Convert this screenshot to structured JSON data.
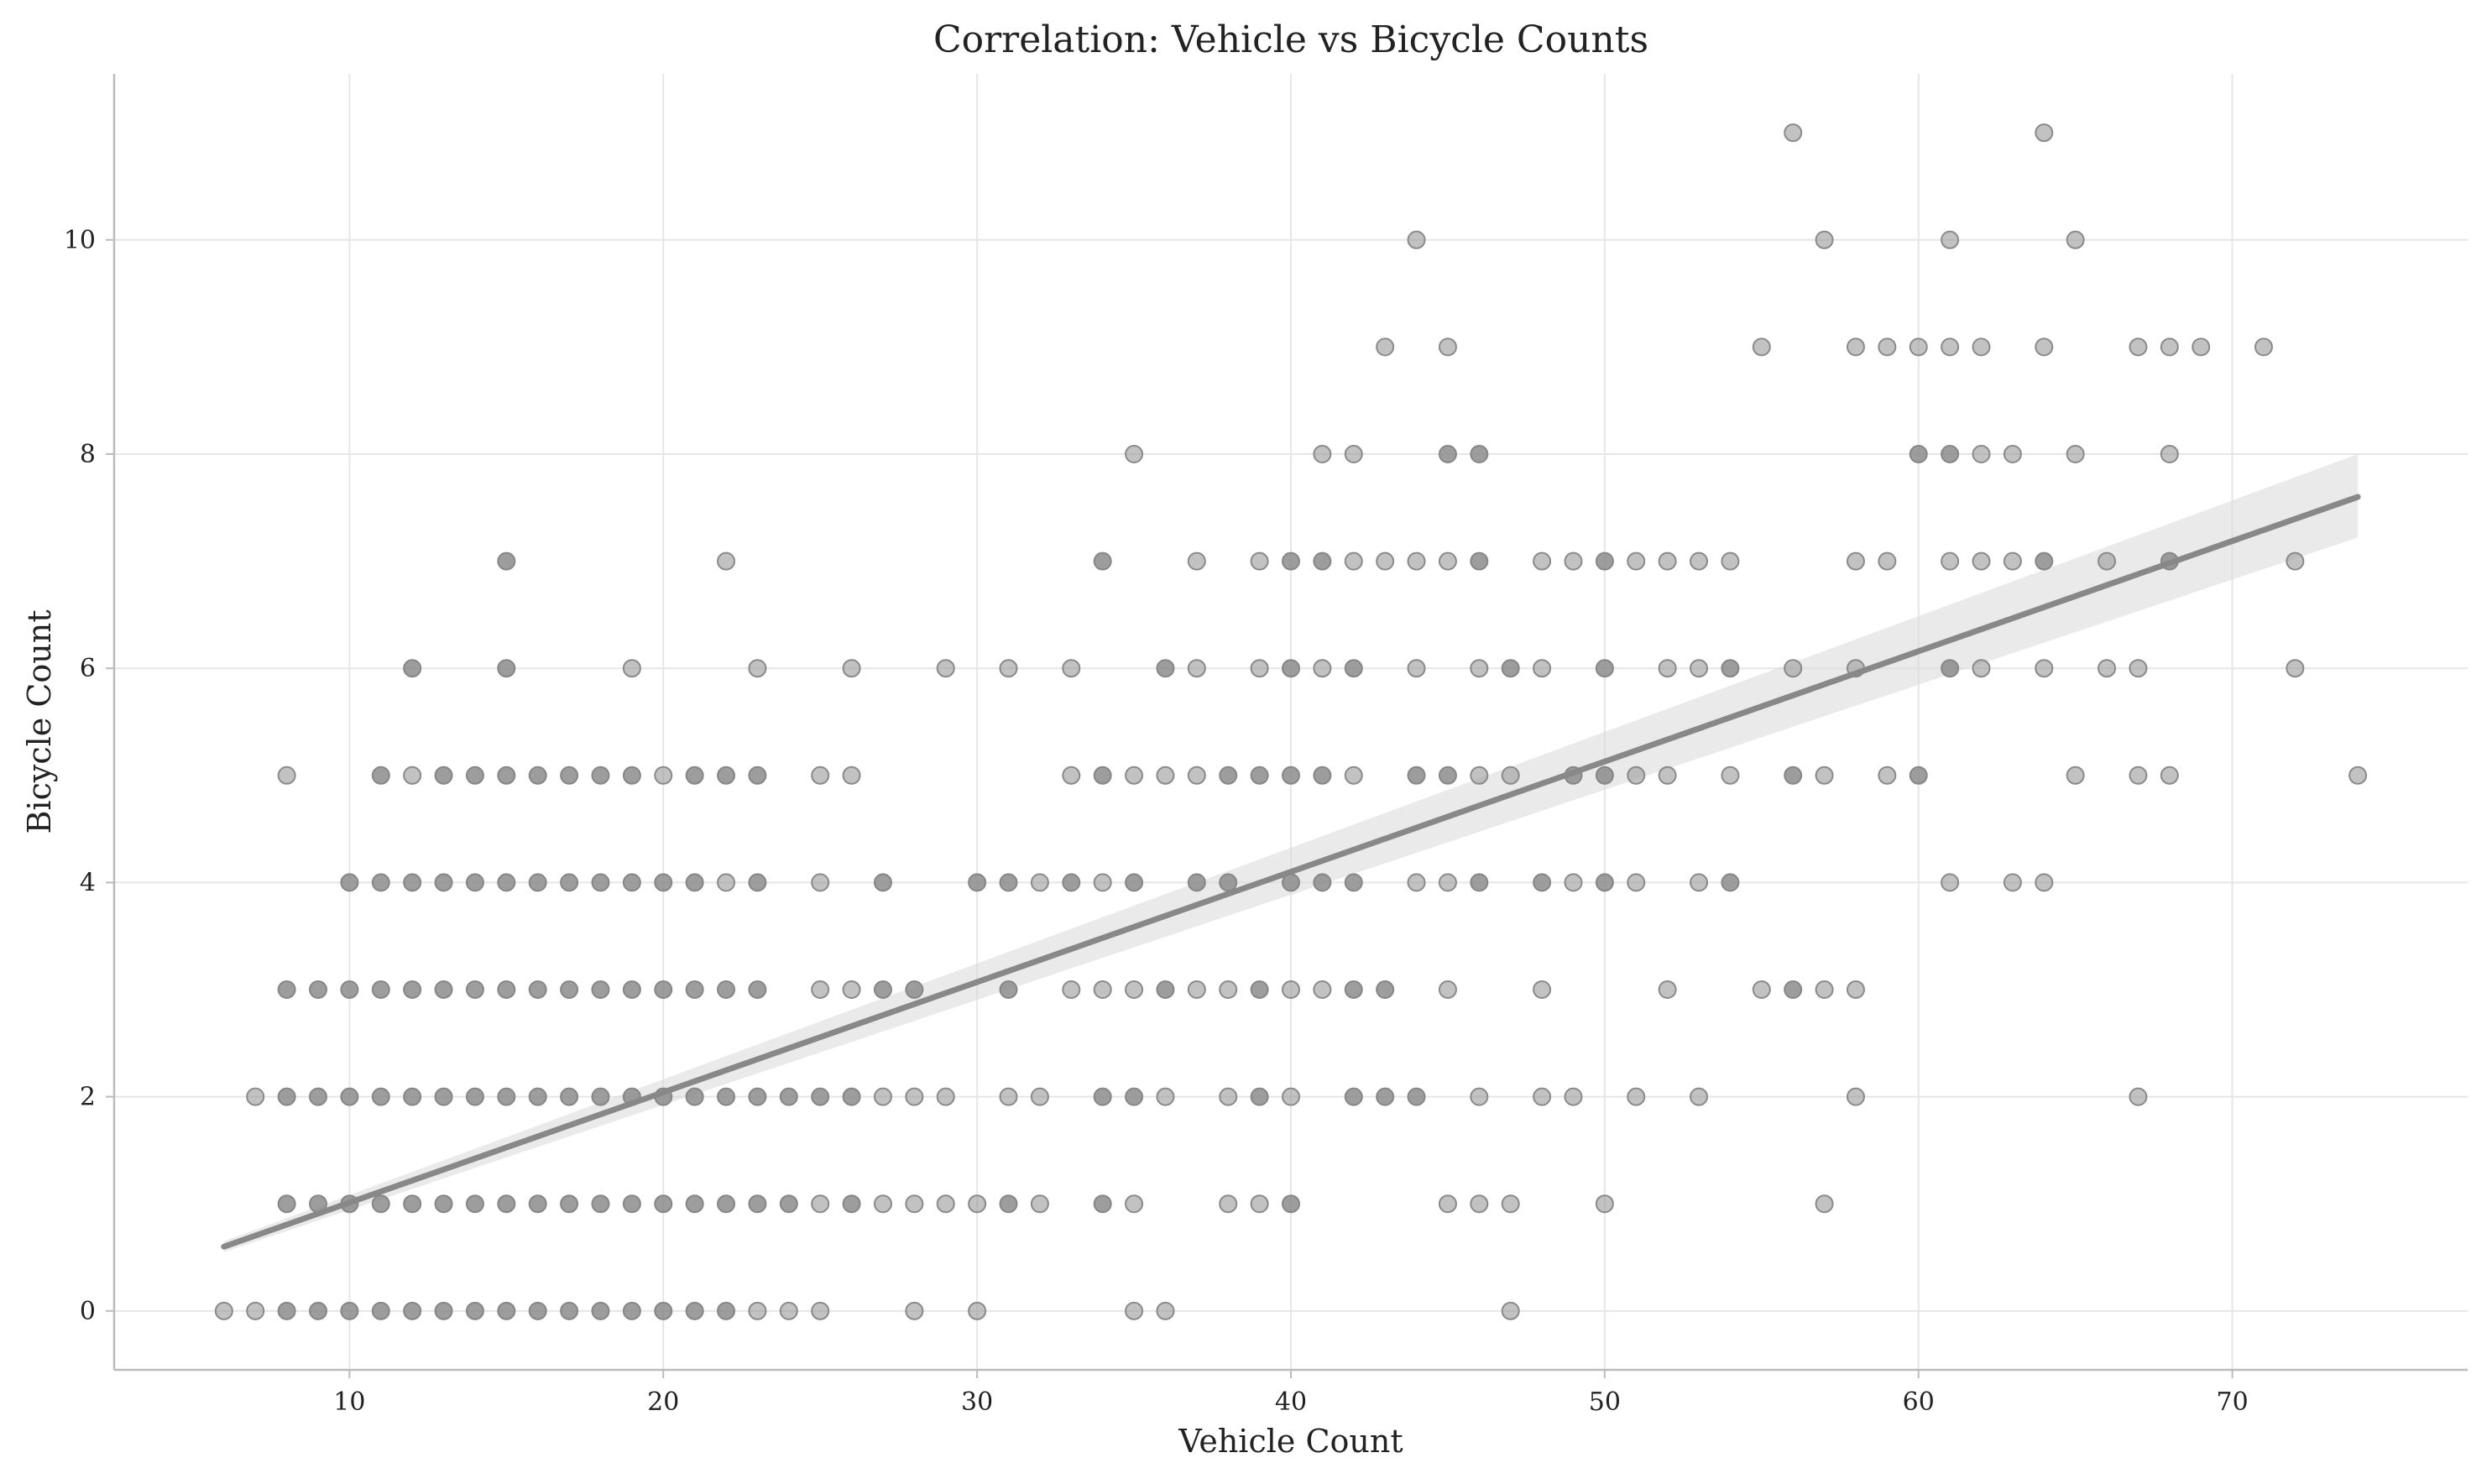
{
  "chart_data": {
    "type": "scatter",
    "title": "Correlation: Vehicle vs Bicycle Counts",
    "xlabel": "Vehicle Count",
    "ylabel": "Bicycle Count",
    "xlim": [
      2.5,
      77.5
    ],
    "ylim": [
      -0.55,
      11.55
    ],
    "xticks": [
      10,
      20,
      30,
      40,
      50,
      60,
      70
    ],
    "yticks": [
      0,
      2,
      4,
      6,
      8,
      10
    ],
    "grid": true,
    "colors": {
      "points": "#999999",
      "point_edge": "#8a8a8a",
      "regression": "#888888",
      "band": "#d9d9d9"
    },
    "regression": {
      "x": [
        6,
        74
      ],
      "y": [
        0.6,
        7.6
      ],
      "ci_upper": [
        0.65,
        8.0
      ],
      "ci_lower": [
        0.55,
        7.22
      ]
    },
    "points": [
      [
        6,
        0
      ],
      [
        7,
        0
      ],
      [
        8,
        0
      ],
      [
        9,
        0
      ],
      [
        10,
        0
      ],
      [
        11,
        0
      ],
      [
        12,
        0
      ],
      [
        13,
        0
      ],
      [
        14,
        0
      ],
      [
        15,
        0
      ],
      [
        16,
        0
      ],
      [
        17,
        0
      ],
      [
        18,
        0
      ],
      [
        19,
        0
      ],
      [
        20,
        0
      ],
      [
        21,
        0
      ],
      [
        22,
        0
      ],
      [
        23,
        0
      ],
      [
        24,
        0
      ],
      [
        25,
        0
      ],
      [
        28,
        0
      ],
      [
        30,
        0
      ],
      [
        35,
        0
      ],
      [
        36,
        0
      ],
      [
        47,
        0
      ],
      [
        8,
        1
      ],
      [
        9,
        1
      ],
      [
        10,
        1
      ],
      [
        11,
        1
      ],
      [
        12,
        1
      ],
      [
        13,
        1
      ],
      [
        14,
        1
      ],
      [
        15,
        1
      ],
      [
        16,
        1
      ],
      [
        17,
        1
      ],
      [
        18,
        1
      ],
      [
        19,
        1
      ],
      [
        20,
        1
      ],
      [
        21,
        1
      ],
      [
        22,
        1
      ],
      [
        23,
        1
      ],
      [
        24,
        1
      ],
      [
        25,
        1
      ],
      [
        26,
        1
      ],
      [
        27,
        1
      ],
      [
        28,
        1
      ],
      [
        29,
        1
      ],
      [
        30,
        1
      ],
      [
        31,
        1
      ],
      [
        32,
        1
      ],
      [
        34,
        1
      ],
      [
        35,
        1
      ],
      [
        38,
        1
      ],
      [
        39,
        1
      ],
      [
        40,
        1
      ],
      [
        45,
        1
      ],
      [
        46,
        1
      ],
      [
        47,
        1
      ],
      [
        50,
        1
      ],
      [
        57,
        1
      ],
      [
        7,
        2
      ],
      [
        8,
        2
      ],
      [
        9,
        2
      ],
      [
        10,
        2
      ],
      [
        11,
        2
      ],
      [
        12,
        2
      ],
      [
        13,
        2
      ],
      [
        14,
        2
      ],
      [
        15,
        2
      ],
      [
        16,
        2
      ],
      [
        17,
        2
      ],
      [
        18,
        2
      ],
      [
        19,
        2
      ],
      [
        20,
        2
      ],
      [
        21,
        2
      ],
      [
        22,
        2
      ],
      [
        23,
        2
      ],
      [
        24,
        2
      ],
      [
        25,
        2
      ],
      [
        26,
        2
      ],
      [
        27,
        2
      ],
      [
        28,
        2
      ],
      [
        29,
        2
      ],
      [
        31,
        2
      ],
      [
        32,
        2
      ],
      [
        34,
        2
      ],
      [
        35,
        2
      ],
      [
        36,
        2
      ],
      [
        38,
        2
      ],
      [
        39,
        2
      ],
      [
        40,
        2
      ],
      [
        42,
        2
      ],
      [
        43,
        2
      ],
      [
        44,
        2
      ],
      [
        46,
        2
      ],
      [
        48,
        2
      ],
      [
        49,
        2
      ],
      [
        51,
        2
      ],
      [
        53,
        2
      ],
      [
        58,
        2
      ],
      [
        67,
        2
      ],
      [
        8,
        3
      ],
      [
        9,
        3
      ],
      [
        10,
        3
      ],
      [
        11,
        3
      ],
      [
        12,
        3
      ],
      [
        13,
        3
      ],
      [
        14,
        3
      ],
      [
        15,
        3
      ],
      [
        16,
        3
      ],
      [
        17,
        3
      ],
      [
        18,
        3
      ],
      [
        19,
        3
      ],
      [
        20,
        3
      ],
      [
        21,
        3
      ],
      [
        22,
        3
      ],
      [
        23,
        3
      ],
      [
        25,
        3
      ],
      [
        26,
        3
      ],
      [
        27,
        3
      ],
      [
        28,
        3
      ],
      [
        31,
        3
      ],
      [
        33,
        3
      ],
      [
        34,
        3
      ],
      [
        35,
        3
      ],
      [
        36,
        3
      ],
      [
        37,
        3
      ],
      [
        38,
        3
      ],
      [
        39,
        3
      ],
      [
        40,
        3
      ],
      [
        41,
        3
      ],
      [
        42,
        3
      ],
      [
        43,
        3
      ],
      [
        45,
        3
      ],
      [
        48,
        3
      ],
      [
        52,
        3
      ],
      [
        55,
        3
      ],
      [
        56,
        3
      ],
      [
        57,
        3
      ],
      [
        58,
        3
      ],
      [
        10,
        4
      ],
      [
        11,
        4
      ],
      [
        12,
        4
      ],
      [
        13,
        4
      ],
      [
        14,
        4
      ],
      [
        15,
        4
      ],
      [
        16,
        4
      ],
      [
        17,
        4
      ],
      [
        18,
        4
      ],
      [
        19,
        4
      ],
      [
        20,
        4
      ],
      [
        21,
        4
      ],
      [
        22,
        4
      ],
      [
        23,
        4
      ],
      [
        25,
        4
      ],
      [
        27,
        4
      ],
      [
        30,
        4
      ],
      [
        31,
        4
      ],
      [
        32,
        4
      ],
      [
        33,
        4
      ],
      [
        34,
        4
      ],
      [
        35,
        4
      ],
      [
        37,
        4
      ],
      [
        38,
        4
      ],
      [
        40,
        4
      ],
      [
        41,
        4
      ],
      [
        42,
        4
      ],
      [
        44,
        4
      ],
      [
        45,
        4
      ],
      [
        46,
        4
      ],
      [
        48,
        4
      ],
      [
        49,
        4
      ],
      [
        50,
        4
      ],
      [
        51,
        4
      ],
      [
        53,
        4
      ],
      [
        54,
        4
      ],
      [
        61,
        4
      ],
      [
        63,
        4
      ],
      [
        64,
        4
      ],
      [
        8,
        5
      ],
      [
        11,
        5
      ],
      [
        12,
        5
      ],
      [
        13,
        5
      ],
      [
        14,
        5
      ],
      [
        15,
        5
      ],
      [
        16,
        5
      ],
      [
        17,
        5
      ],
      [
        18,
        5
      ],
      [
        19,
        5
      ],
      [
        20,
        5
      ],
      [
        21,
        5
      ],
      [
        22,
        5
      ],
      [
        23,
        5
      ],
      [
        25,
        5
      ],
      [
        26,
        5
      ],
      [
        33,
        5
      ],
      [
        34,
        5
      ],
      [
        35,
        5
      ],
      [
        36,
        5
      ],
      [
        37,
        5
      ],
      [
        38,
        5
      ],
      [
        39,
        5
      ],
      [
        40,
        5
      ],
      [
        41,
        5
      ],
      [
        42,
        5
      ],
      [
        44,
        5
      ],
      [
        45,
        5
      ],
      [
        46,
        5
      ],
      [
        47,
        5
      ],
      [
        49,
        5
      ],
      [
        50,
        5
      ],
      [
        51,
        5
      ],
      [
        52,
        5
      ],
      [
        54,
        5
      ],
      [
        56,
        5
      ],
      [
        57,
        5
      ],
      [
        59,
        5
      ],
      [
        60,
        5
      ],
      [
        65,
        5
      ],
      [
        67,
        5
      ],
      [
        68,
        5
      ],
      [
        74,
        5
      ],
      [
        12,
        6
      ],
      [
        15,
        6
      ],
      [
        19,
        6
      ],
      [
        23,
        6
      ],
      [
        26,
        6
      ],
      [
        29,
        6
      ],
      [
        31,
        6
      ],
      [
        33,
        6
      ],
      [
        36,
        6
      ],
      [
        37,
        6
      ],
      [
        39,
        6
      ],
      [
        40,
        6
      ],
      [
        41,
        6
      ],
      [
        42,
        6
      ],
      [
        44,
        6
      ],
      [
        46,
        6
      ],
      [
        47,
        6
      ],
      [
        48,
        6
      ],
      [
        50,
        6
      ],
      [
        52,
        6
      ],
      [
        53,
        6
      ],
      [
        54,
        6
      ],
      [
        56,
        6
      ],
      [
        58,
        6
      ],
      [
        61,
        6
      ],
      [
        62,
        6
      ],
      [
        64,
        6
      ],
      [
        66,
        6
      ],
      [
        67,
        6
      ],
      [
        72,
        6
      ],
      [
        15,
        7
      ],
      [
        22,
        7
      ],
      [
        34,
        7
      ],
      [
        37,
        7
      ],
      [
        39,
        7
      ],
      [
        40,
        7
      ],
      [
        41,
        7
      ],
      [
        42,
        7
      ],
      [
        43,
        7
      ],
      [
        44,
        7
      ],
      [
        45,
        7
      ],
      [
        46,
        7
      ],
      [
        48,
        7
      ],
      [
        49,
        7
      ],
      [
        50,
        7
      ],
      [
        51,
        7
      ],
      [
        52,
        7
      ],
      [
        53,
        7
      ],
      [
        54,
        7
      ],
      [
        58,
        7
      ],
      [
        59,
        7
      ],
      [
        61,
        7
      ],
      [
        62,
        7
      ],
      [
        63,
        7
      ],
      [
        64,
        7
      ],
      [
        66,
        7
      ],
      [
        68,
        7
      ],
      [
        72,
        7
      ],
      [
        35,
        8
      ],
      [
        41,
        8
      ],
      [
        42,
        8
      ],
      [
        45,
        8
      ],
      [
        46,
        8
      ],
      [
        60,
        8
      ],
      [
        61,
        8
      ],
      [
        62,
        8
      ],
      [
        63,
        8
      ],
      [
        65,
        8
      ],
      [
        68,
        8
      ],
      [
        43,
        9
      ],
      [
        45,
        9
      ],
      [
        55,
        9
      ],
      [
        58,
        9
      ],
      [
        59,
        9
      ],
      [
        60,
        9
      ],
      [
        61,
        9
      ],
      [
        62,
        9
      ],
      [
        64,
        9
      ],
      [
        67,
        9
      ],
      [
        68,
        9
      ],
      [
        69,
        9
      ],
      [
        71,
        9
      ],
      [
        44,
        10
      ],
      [
        57,
        10
      ],
      [
        61,
        10
      ],
      [
        65,
        10
      ],
      [
        56,
        11
      ],
      [
        64,
        11
      ]
    ],
    "dense_points": [
      [
        8,
        0
      ],
      [
        9,
        0
      ],
      [
        10,
        0
      ],
      [
        11,
        0
      ],
      [
        12,
        0
      ],
      [
        13,
        0
      ],
      [
        14,
        0
      ],
      [
        15,
        0
      ],
      [
        16,
        0
      ],
      [
        17,
        0
      ],
      [
        18,
        0
      ],
      [
        19,
        0
      ],
      [
        20,
        0
      ],
      [
        21,
        0
      ],
      [
        22,
        0
      ],
      [
        8,
        1
      ],
      [
        9,
        1
      ],
      [
        10,
        1
      ],
      [
        11,
        1
      ],
      [
        12,
        1
      ],
      [
        13,
        1
      ],
      [
        14,
        1
      ],
      [
        15,
        1
      ],
      [
        16,
        1
      ],
      [
        17,
        1
      ],
      [
        18,
        1
      ],
      [
        19,
        1
      ],
      [
        20,
        1
      ],
      [
        21,
        1
      ],
      [
        22,
        1
      ],
      [
        23,
        1
      ],
      [
        24,
        1
      ],
      [
        26,
        1
      ],
      [
        31,
        1
      ],
      [
        34,
        1
      ],
      [
        40,
        1
      ],
      [
        8,
        2
      ],
      [
        9,
        2
      ],
      [
        10,
        2
      ],
      [
        11,
        2
      ],
      [
        12,
        2
      ],
      [
        13,
        2
      ],
      [
        14,
        2
      ],
      [
        15,
        2
      ],
      [
        16,
        2
      ],
      [
        17,
        2
      ],
      [
        18,
        2
      ],
      [
        19,
        2
      ],
      [
        20,
        2
      ],
      [
        21,
        2
      ],
      [
        22,
        2
      ],
      [
        23,
        2
      ],
      [
        24,
        2
      ],
      [
        25,
        2
      ],
      [
        26,
        2
      ],
      [
        34,
        2
      ],
      [
        35,
        2
      ],
      [
        39,
        2
      ],
      [
        42,
        2
      ],
      [
        43,
        2
      ],
      [
        44,
        2
      ],
      [
        8,
        3
      ],
      [
        9,
        3
      ],
      [
        10,
        3
      ],
      [
        11,
        3
      ],
      [
        12,
        3
      ],
      [
        13,
        3
      ],
      [
        14,
        3
      ],
      [
        15,
        3
      ],
      [
        16,
        3
      ],
      [
        17,
        3
      ],
      [
        18,
        3
      ],
      [
        19,
        3
      ],
      [
        20,
        3
      ],
      [
        21,
        3
      ],
      [
        22,
        3
      ],
      [
        23,
        3
      ],
      [
        27,
        3
      ],
      [
        28,
        3
      ],
      [
        31,
        3
      ],
      [
        36,
        3
      ],
      [
        39,
        3
      ],
      [
        42,
        3
      ],
      [
        43,
        3
      ],
      [
        56,
        3
      ],
      [
        10,
        4
      ],
      [
        11,
        4
      ],
      [
        12,
        4
      ],
      [
        13,
        4
      ],
      [
        14,
        4
      ],
      [
        15,
        4
      ],
      [
        16,
        4
      ],
      [
        17,
        4
      ],
      [
        18,
        4
      ],
      [
        19,
        4
      ],
      [
        20,
        4
      ],
      [
        21,
        4
      ],
      [
        23,
        4
      ],
      [
        27,
        4
      ],
      [
        30,
        4
      ],
      [
        31,
        4
      ],
      [
        33,
        4
      ],
      [
        35,
        4
      ],
      [
        37,
        4
      ],
      [
        38,
        4
      ],
      [
        40,
        4
      ],
      [
        41,
        4
      ],
      [
        42,
        4
      ],
      [
        46,
        4
      ],
      [
        48,
        4
      ],
      [
        50,
        4
      ],
      [
        54,
        4
      ],
      [
        11,
        5
      ],
      [
        13,
        5
      ],
      [
        14,
        5
      ],
      [
        15,
        5
      ],
      [
        16,
        5
      ],
      [
        17,
        5
      ],
      [
        18,
        5
      ],
      [
        19,
        5
      ],
      [
        21,
        5
      ],
      [
        22,
        5
      ],
      [
        23,
        5
      ],
      [
        34,
        5
      ],
      [
        38,
        5
      ],
      [
        39,
        5
      ],
      [
        40,
        5
      ],
      [
        41,
        5
      ],
      [
        44,
        5
      ],
      [
        45,
        5
      ],
      [
        49,
        5
      ],
      [
        50,
        5
      ],
      [
        56,
        5
      ],
      [
        60,
        5
      ],
      [
        12,
        6
      ],
      [
        15,
        6
      ],
      [
        36,
        6
      ],
      [
        40,
        6
      ],
      [
        42,
        6
      ],
      [
        47,
        6
      ],
      [
        50,
        6
      ],
      [
        54,
        6
      ],
      [
        61,
        6
      ],
      [
        15,
        7
      ],
      [
        34,
        7
      ],
      [
        40,
        7
      ],
      [
        41,
        7
      ],
      [
        46,
        7
      ],
      [
        50,
        7
      ],
      [
        64,
        7
      ],
      [
        68,
        7
      ],
      [
        45,
        8
      ],
      [
        46,
        8
      ],
      [
        60,
        8
      ],
      [
        61,
        8
      ]
    ]
  }
}
